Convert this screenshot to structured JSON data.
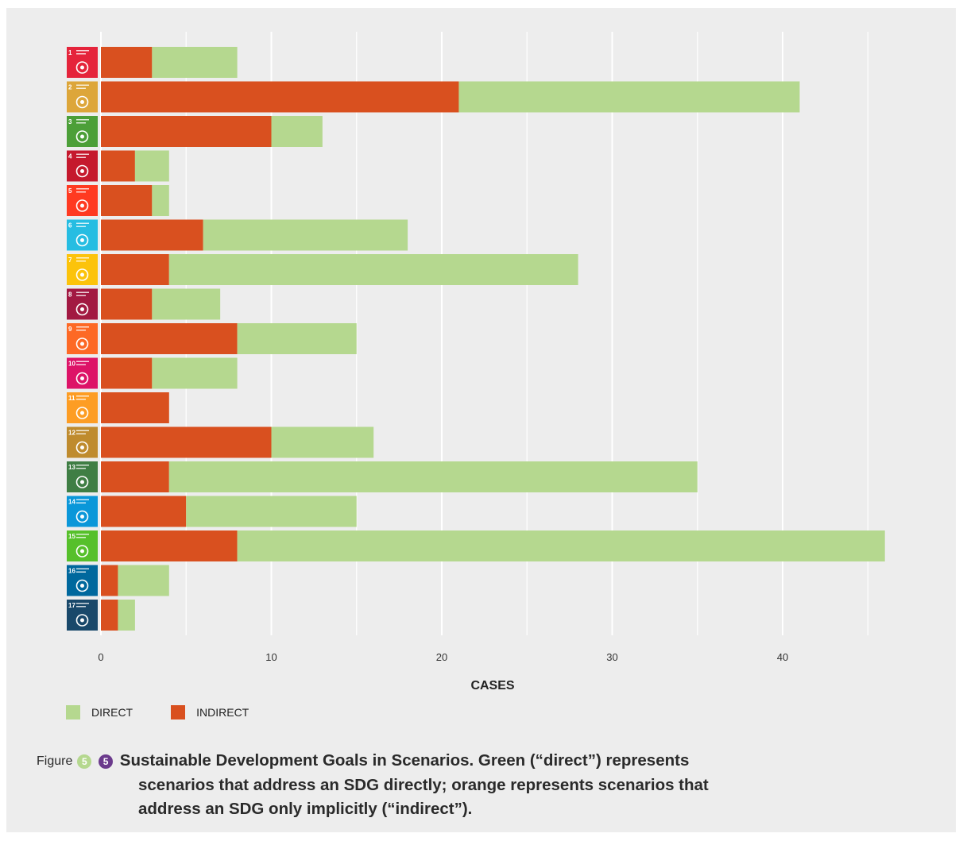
{
  "chart_data": {
    "type": "bar",
    "orientation": "horizontal",
    "stacked": true,
    "categories": [
      "1",
      "2",
      "3",
      "4",
      "5",
      "6",
      "7",
      "8",
      "9",
      "10",
      "11",
      "12",
      "13",
      "14",
      "15",
      "16",
      "17"
    ],
    "series": [
      {
        "name": "INDIRECT",
        "values": [
          3,
          21,
          10,
          2,
          3,
          6,
          4,
          3,
          8,
          3,
          4,
          10,
          4,
          5,
          8,
          1,
          1
        ],
        "color": "#d9501f"
      },
      {
        "name": "DIRECT",
        "values": [
          5,
          20,
          3,
          2,
          1,
          12,
          24,
          4,
          7,
          5,
          0,
          6,
          31,
          10,
          38,
          3,
          1
        ],
        "color": "#b5d88f"
      }
    ],
    "xlabel": "CASES",
    "xticks": [
      0,
      10,
      20,
      30,
      40
    ],
    "xlim": [
      -2,
      47
    ],
    "grid": true,
    "legend_position": "bottom-left",
    "sdg_icons": [
      {
        "num": "1",
        "color": "#e5243b"
      },
      {
        "num": "2",
        "color": "#dda63a"
      },
      {
        "num": "3",
        "color": "#4c9f38"
      },
      {
        "num": "4",
        "color": "#c5192d"
      },
      {
        "num": "5",
        "color": "#ff3a21"
      },
      {
        "num": "6",
        "color": "#26bde2"
      },
      {
        "num": "7",
        "color": "#fcc30b"
      },
      {
        "num": "8",
        "color": "#a21942"
      },
      {
        "num": "9",
        "color": "#fd6925"
      },
      {
        "num": "10",
        "color": "#dd1367"
      },
      {
        "num": "11",
        "color": "#fd9d24"
      },
      {
        "num": "12",
        "color": "#bf8b2e"
      },
      {
        "num": "13",
        "color": "#3f7e44"
      },
      {
        "num": "14",
        "color": "#0a97d9"
      },
      {
        "num": "15",
        "color": "#56c02b"
      },
      {
        "num": "16",
        "color": "#00689d"
      },
      {
        "num": "17",
        "color": "#19486a"
      }
    ]
  },
  "legend": {
    "direct_label": "DIRECT",
    "indirect_label": "INDIRECT",
    "direct_color": "#b5d88f",
    "indirect_color": "#d9501f"
  },
  "caption": {
    "figure_word": "Figure",
    "badge1": "5",
    "badge2": "5",
    "badge1_color": "#b5d88f",
    "badge2_color": "#6b3a8c",
    "line1": "Sustainable Development Goals in Scenarios. Green (“direct”) represents",
    "line2": "scenarios that address an SDG directly; orange represents scenarios that",
    "line3": "address an SDG only implicitly (“indirect”)."
  }
}
